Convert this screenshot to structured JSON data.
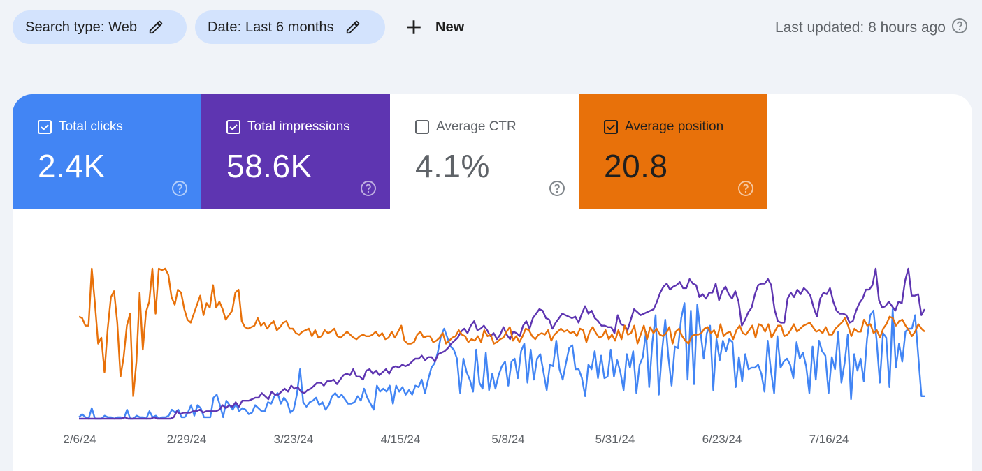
{
  "filters": {
    "search_type": "Search type: Web",
    "date": "Date: Last 6 months",
    "new_label": "New"
  },
  "status": {
    "last_updated": "Last updated: 8 hours ago"
  },
  "metrics": [
    {
      "label": "Total clicks",
      "value": "2.4K",
      "checked": true,
      "color": "#4285f4"
    },
    {
      "label": "Total impressions",
      "value": "58.6K",
      "checked": true,
      "color": "#5e35b1"
    },
    {
      "label": "Average CTR",
      "value": "4.1%",
      "checked": false,
      "color": "#ffffff"
    },
    {
      "label": "Average position",
      "value": "20.8",
      "checked": true,
      "color": "#e8710a"
    }
  ],
  "icons": {
    "edit": "pencil-icon",
    "add": "plus-icon",
    "help": "help-circle-icon",
    "checkbox": "checkbox-icon"
  },
  "chart_data": {
    "type": "line",
    "x_tick_labels": [
      "2/6/24",
      "2/29/24",
      "3/23/24",
      "4/15/24",
      "5/8/24",
      "5/31/24",
      "6/23/24",
      "7/16/24"
    ],
    "x_start": "2/6/24",
    "x_end": "8/4/24",
    "y_axis": "hidden, one independent scale per series",
    "grid": false,
    "series": [
      {
        "name": "Total clicks",
        "color": "#4285f4",
        "values": [
          1,
          3,
          1,
          0,
          7,
          0,
          0,
          0,
          2,
          1,
          1,
          0,
          1,
          1,
          0,
          6,
          0,
          0,
          2,
          1,
          1,
          0,
          5,
          1,
          2,
          0,
          1,
          1,
          2,
          6,
          4,
          6,
          1,
          1,
          4,
          9,
          2,
          9,
          7,
          1,
          1,
          1,
          14,
          16,
          9,
          1,
          12,
          9,
          6,
          10,
          5,
          7,
          6,
          3,
          4,
          9,
          7,
          5,
          5,
          11,
          10,
          15,
          17,
          10,
          14,
          11,
          4,
          6,
          16,
          33,
          11,
          8,
          11,
          12,
          14,
          9,
          11,
          6,
          9,
          15,
          17,
          14,
          16,
          13,
          10,
          10,
          11,
          15,
          12,
          20,
          14,
          10,
          6,
          22,
          18,
          20,
          18,
          22,
          10,
          22,
          18,
          21,
          16,
          19,
          16,
          22,
          21,
          26,
          17,
          26,
          34,
          37,
          44,
          55,
          60,
          54,
          48,
          46,
          40,
          17,
          40,
          31,
          26,
          18,
          46,
          24,
          20,
          44,
          19,
          30,
          20,
          29,
          35,
          38,
          22,
          38,
          40,
          27,
          45,
          50,
          24,
          46,
          26,
          40,
          43,
          31,
          19,
          36,
          35,
          52,
          33,
          26,
          37,
          47,
          49,
          33,
          33,
          27,
          15,
          36,
          33,
          45,
          27,
          42,
          27,
          28,
          46,
          28,
          39,
          31,
          19,
          43,
          34,
          45,
          17,
          36,
          41,
          58,
          21,
          51,
          69,
          16,
          45,
          66,
          41,
          22,
          48,
          47,
          67,
          77,
          26,
          72,
          23,
          76,
          58,
          40,
          57,
          62,
          19,
          53,
          39,
          52,
          45,
          53,
          51,
          21,
          41,
          25,
          43,
          33,
          34,
          34,
          36,
          30,
          18,
          52,
          32,
          17,
          55,
          34,
          38,
          40,
          36,
          27,
          51,
          40,
          44,
          35,
          17,
          48,
          26,
          52,
          45,
          42,
          17,
          41,
          33,
          58,
          24,
          37,
          56,
          13,
          43,
          32,
          40,
          25,
          53,
          69,
          72,
          52,
          24,
          57,
          54,
          21,
          73,
          34,
          50,
          38,
          58,
          60,
          60,
          69,
          42,
          15,
          15
        ]
      },
      {
        "name": "Total impressions",
        "color": "#5e35b1",
        "values": [
          0,
          0,
          0,
          0,
          0,
          0,
          0,
          0,
          0,
          0,
          0,
          0,
          0,
          0,
          1,
          0,
          0,
          0,
          0,
          0,
          0,
          0,
          0,
          1,
          0,
          0,
          0,
          0,
          0,
          1,
          5,
          3,
          4,
          4,
          4,
          5,
          5,
          6,
          4,
          5,
          5,
          5,
          5,
          6,
          9,
          7,
          9,
          8,
          11,
          8,
          12,
          12,
          12,
          13,
          14,
          14,
          17,
          15,
          13,
          18,
          16,
          16,
          18,
          20,
          18,
          22,
          20,
          21,
          18,
          17,
          19,
          20,
          22,
          24,
          24,
          22,
          25,
          25,
          26,
          23,
          26,
          29,
          30,
          29,
          33,
          28,
          28,
          26,
          32,
          33,
          30,
          32,
          29,
          31,
          33,
          30,
          34,
          35,
          34,
          36,
          35,
          36,
          38,
          40,
          40,
          42,
          39,
          41,
          41,
          38,
          43,
          44,
          45,
          47,
          50,
          52,
          54,
          58,
          60,
          57,
          62,
          65,
          59,
          60,
          62,
          59,
          55,
          57,
          53,
          56,
          61,
          56,
          53,
          58,
          57,
          55,
          62,
          65,
          60,
          67,
          70,
          73,
          72,
          67,
          66,
          60,
          64,
          67,
          70,
          69,
          68,
          67,
          68,
          64,
          70,
          75,
          70,
          72,
          67,
          65,
          62,
          62,
          61,
          61,
          57,
          69,
          63,
          62,
          59,
          66,
          73,
          71,
          69,
          70,
          71,
          72,
          73,
          78,
          84,
          88,
          90,
          86,
          88,
          89,
          91,
          87,
          87,
          93,
          90,
          89,
          81,
          83,
          80,
          84,
          84,
          90,
          79,
          85,
          88,
          83,
          80,
          85,
          78,
          62,
          66,
          71,
          74,
          83,
          89,
          90,
          90,
          93,
          89,
          73,
          65,
          64,
          64,
          80,
          84,
          81,
          86,
          83,
          87,
          85,
          82,
          74,
          68,
          80,
          84,
          83,
          87,
          78,
          72,
          70,
          70,
          69,
          64,
          65,
          72,
          77,
          80,
          86,
          86,
          89,
          100,
          79,
          74,
          75,
          78,
          75,
          72,
          78,
          77,
          92,
          100,
          82,
          82,
          83,
          69,
          73
        ]
      },
      {
        "name": "Average position",
        "color": "#e8710a",
        "values": [
          68,
          67,
          62,
          62,
          100,
          77,
          50,
          54,
          31,
          60,
          81,
          85,
          64,
          28,
          41,
          62,
          70,
          15,
          38,
          84,
          46,
          71,
          78,
          100,
          70,
          100,
          99,
          100,
          96,
          81,
          76,
          86,
          84,
          73,
          66,
          64,
          70,
          76,
          82,
          69,
          77,
          74,
          89,
          74,
          78,
          73,
          66,
          69,
          72,
          84,
          86,
          65,
          61,
          60,
          61,
          62,
          67,
          62,
          64,
          60,
          63,
          65,
          59,
          61,
          64,
          65,
          60,
          60,
          57,
          56,
          58,
          59,
          60,
          55,
          59,
          54,
          55,
          59,
          57,
          58,
          60,
          55,
          54,
          56,
          58,
          56,
          54,
          53,
          55,
          56,
          55,
          55,
          56,
          58,
          55,
          57,
          53,
          54,
          58,
          54,
          58,
          62,
          52,
          50,
          50,
          51,
          56,
          58,
          54,
          55,
          55,
          51,
          52,
          54,
          57,
          50,
          52,
          54,
          55,
          59,
          56,
          55,
          51,
          53,
          52,
          55,
          51,
          59,
          55,
          56,
          50,
          51,
          53,
          54,
          58,
          61,
          52,
          55,
          51,
          55,
          60,
          59,
          55,
          53,
          56,
          57,
          56,
          59,
          52,
          56,
          58,
          60,
          58,
          59,
          57,
          58,
          55,
          60,
          59,
          51,
          58,
          61,
          57,
          54,
          55,
          59,
          53,
          56,
          52,
          59,
          53,
          62,
          56,
          57,
          62,
          50,
          56,
          62,
          53,
          61,
          57,
          60,
          56,
          55,
          57,
          61,
          50,
          58,
          60,
          55,
          52,
          50,
          55,
          56,
          56,
          57,
          60,
          61,
          57,
          59,
          54,
          63,
          55,
          57,
          58,
          53,
          59,
          62,
          57,
          56,
          59,
          62,
          54,
          63,
          62,
          58,
          63,
          54,
          58,
          62,
          62,
          55,
          56,
          59,
          63,
          58,
          60,
          62,
          63,
          64,
          61,
          58,
          59,
          57,
          61,
          56,
          56,
          60,
          62,
          64,
          67,
          62,
          55,
          60,
          58,
          58,
          66,
          62,
          63,
          57,
          59,
          54,
          60,
          63,
          68,
          67,
          62,
          65,
          66,
          62,
          59,
          55,
          58,
          63,
          60,
          58
        ]
      }
    ]
  }
}
